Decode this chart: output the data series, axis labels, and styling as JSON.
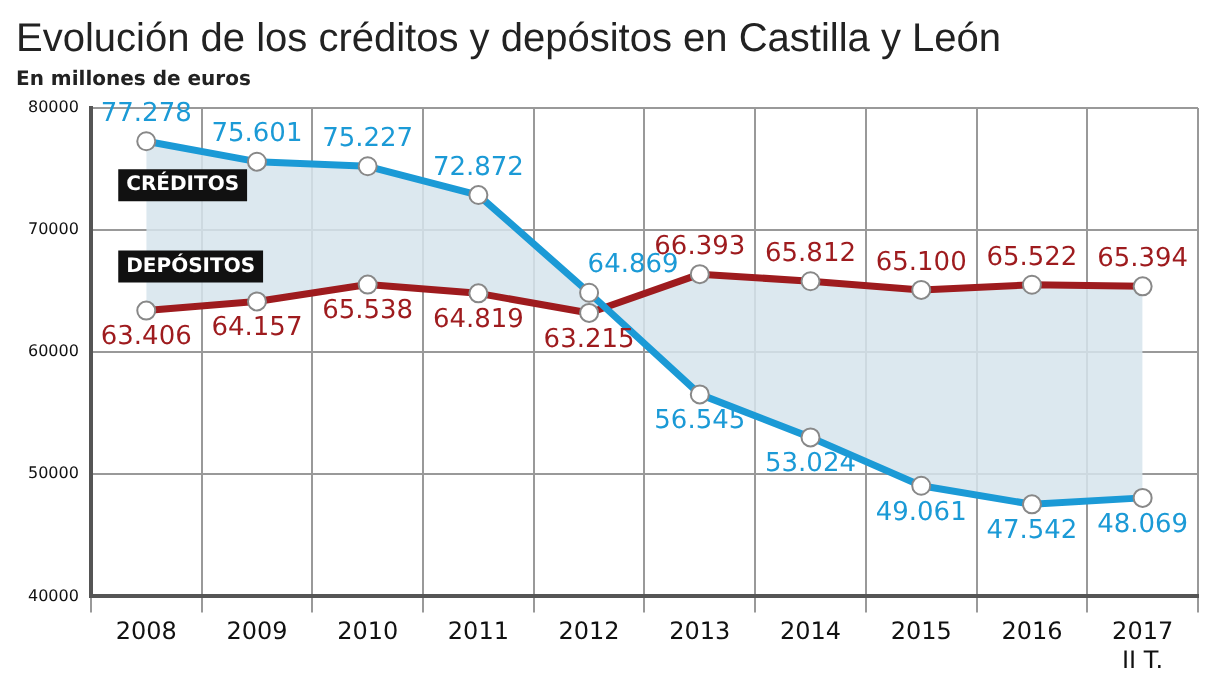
{
  "chart_data": {
    "type": "line",
    "title": "Evolución de los créditos y depósitos en Castilla y León",
    "subtitle": "En millones de euros",
    "categories": [
      "2008",
      "2009",
      "2010",
      "2011",
      "2012",
      "2013",
      "2014",
      "2015",
      "2016",
      "2017\nII T."
    ],
    "series": [
      {
        "name": "CRÉDITOS",
        "color": "#1b9ad6",
        "values": [
          77278,
          75601,
          75227,
          72872,
          64869,
          56545,
          53024,
          49061,
          47542,
          48069
        ],
        "value_labels": [
          "77.278",
          "75.601",
          "75.227",
          "72.872",
          "64.869",
          "56.545",
          "53.024",
          "49.061",
          "47.542",
          "48.069"
        ]
      },
      {
        "name": "DEPÓSITOS",
        "color": "#9e1b1e",
        "values": [
          63406,
          64157,
          65538,
          64819,
          63215,
          66393,
          65812,
          65100,
          65522,
          65394
        ],
        "value_labels": [
          "63.406",
          "64.157",
          "65.538",
          "64.819",
          "63.215",
          "66.393",
          "65.812",
          "65.100",
          "65.522",
          "65.394"
        ]
      }
    ],
    "ylim": [
      40000,
      80000
    ],
    "yticks": [
      40000,
      50000,
      60000,
      70000,
      80000
    ],
    "grid": true,
    "legend": false,
    "marker": "circle",
    "line_style": "solid"
  }
}
